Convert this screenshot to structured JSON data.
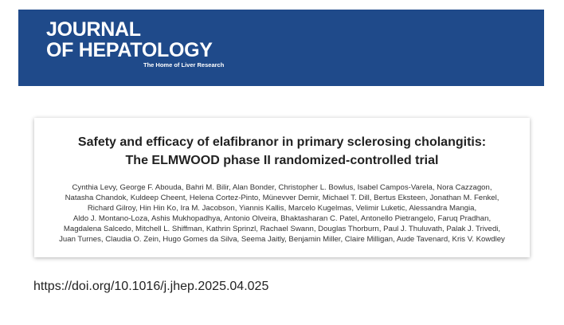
{
  "header": {
    "journal_line1": "JOURNAL",
    "journal_line2": "OF HEPATOLOGY",
    "tagline": "The Home of Liver Research"
  },
  "article": {
    "title_lines": [
      "Safety and efficacy of elafibranor in primary sclerosing cholangitis:",
      "The ELMWOOD phase II randomized-controlled trial"
    ],
    "author_lines": [
      "Cynthia Levy, George F. Abouda, Bahri M. Bilir, Alan Bonder, Christopher L. Bowlus, Isabel Campos-Varela, Nora Cazzagon,",
      "Natasha Chandok, Kuldeep Cheent, Helena Cortez-Pinto, Münevver Demir, Michael T. Dill, Bertus Eksteen, Jonathan M. Fenkel,",
      "Richard Gilroy, Hin Hin Ko, Ira M. Jacobson, Yiannis Kallis, Marcelo Kugelmas, Velimir Luketic, Alessandra Mangia,",
      "Aldo J. Montano-Loza, Ashis Mukhopadhya, Antonio Olveira, Bhaktasharan C. Patel, Antonello Pietrangelo, Faruq Pradhan,",
      "Magdalena Salcedo, Mitchell L. Shiffman, Kathrin Sprinzl, Rachael Swann, Douglas Thorburn, Paul J. Thuluvath, Palak J. Trivedi,",
      "Juan Turnes, Claudia O. Zein, Hugo Gomes da Silva, Seema Jaitly, Benjamin Miller, Claire Milligan, Aude Tavenard, Kris V. Kowdley"
    ]
  },
  "doi": "https://doi.org/10.1016/j.jhep.2025.04.025"
}
